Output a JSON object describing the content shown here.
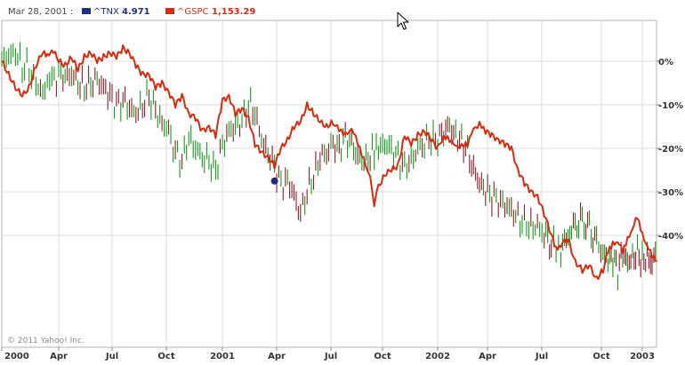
{
  "legend": {
    "date": "Mar 28, 2001 :",
    "items": [
      {
        "symbol": "^TNX",
        "value": "4.971",
        "color": "#1f2e80"
      },
      {
        "symbol": "^GSPC",
        "value": "1,153.29",
        "color": "#d62b0e"
      }
    ]
  },
  "copyright": "© 2011 Yahoo! Inc.",
  "colors": {
    "up": "#169a1b",
    "down": "#8a1f2b",
    "line": "#d62b0e",
    "grid": "#dcdcdc",
    "frame": "#b4b4b4",
    "marker": "#1f2e80"
  },
  "icons": {
    "cursor": "mouse-pointer-icon"
  },
  "chart_data": {
    "type": "line",
    "title": "",
    "x_tick_labels": [
      "2000",
      "Apr",
      "Jul",
      "Oct",
      "2001",
      "Apr",
      "Jul",
      "Oct",
      "2002",
      "Apr",
      "Jul",
      "Oct",
      "2003"
    ],
    "y_tick_labels": [
      "0%",
      "-10%",
      "-20%",
      "-30%",
      "-40%"
    ],
    "y_ticks": [
      0,
      -10,
      -20,
      -30,
      -40
    ],
    "ylim": [
      12,
      -53
    ],
    "xlim": [
      2000.0,
      2003.1
    ],
    "grid": true,
    "marker": {
      "series": "^TNX",
      "date": "Mar 28, 2001",
      "x": 2001.24,
      "y": -27.5
    },
    "series": [
      {
        "name": "^GSPC",
        "style": "line",
        "x": [
          2000.0,
          2000.03,
          2000.06,
          2000.09,
          2000.12,
          2000.15,
          2000.18,
          2000.2,
          2000.22,
          2000.25,
          2000.28,
          2000.31,
          2000.34,
          2000.37,
          2000.4,
          2000.43,
          2000.46,
          2000.49,
          2000.52,
          2000.55,
          2000.58,
          2000.61,
          2000.64,
          2000.67,
          2000.7,
          2000.73,
          2000.76,
          2000.79,
          2000.82,
          2000.85,
          2000.88,
          2000.91,
          2000.94,
          2000.97,
          2001.0,
          2001.03,
          2001.06,
          2001.09,
          2001.12,
          2001.15,
          2001.18,
          2001.21,
          2001.24,
          2001.27,
          2001.3,
          2001.33,
          2001.36,
          2001.39,
          2001.42,
          2001.45,
          2001.48,
          2001.51,
          2001.54,
          2001.57,
          2001.6,
          2001.63,
          2001.66,
          2001.69,
          2001.71,
          2001.73,
          2001.76,
          2001.79,
          2001.82,
          2001.85,
          2001.88,
          2001.91,
          2001.94,
          2001.97,
          2002.0,
          2002.03,
          2002.06,
          2002.09,
          2002.12,
          2002.15,
          2002.18,
          2002.21,
          2002.24,
          2002.27,
          2002.3,
          2002.33,
          2002.36,
          2002.39,
          2002.42,
          2002.45,
          2002.48,
          2002.51,
          2002.54,
          2002.56,
          2002.58,
          2002.61,
          2002.64,
          2002.67,
          2002.7,
          2002.73,
          2002.76,
          2002.79,
          2002.82,
          2002.85,
          2002.88,
          2002.91,
          2002.94,
          2002.97,
          2003.0,
          2003.03,
          2003.06,
          2003.09
        ],
        "y": [
          0,
          -3,
          -6,
          -8,
          -6,
          -1,
          2,
          1,
          3,
          0,
          -1,
          1,
          -2,
          1,
          2,
          0,
          1,
          2,
          1,
          3,
          2,
          -1,
          -3,
          -3,
          -6,
          -5,
          -7,
          -10,
          -8,
          -12,
          -13,
          -16,
          -15,
          -17,
          -9,
          -8,
          -12,
          -11,
          -13,
          -19,
          -21,
          -22,
          -24,
          -20,
          -18,
          -15,
          -14,
          -10,
          -12,
          -14,
          -15,
          -14,
          -16,
          -17,
          -15,
          -19,
          -23,
          -26,
          -33,
          -29,
          -26,
          -25,
          -24,
          -17,
          -19,
          -17,
          -16,
          -18,
          -20,
          -17,
          -18,
          -20,
          -19,
          -19,
          -16,
          -14,
          -16,
          -17,
          -18,
          -19,
          -20,
          -25,
          -28,
          -30,
          -31,
          -35,
          -40,
          -43,
          -42,
          -41,
          -46,
          -48,
          -47,
          -50,
          -48,
          -44,
          -42,
          -41,
          -44,
          -41,
          -38,
          -36,
          -40,
          -42,
          -45,
          -46
        ],
        "color": "#d62b0e"
      },
      {
        "name": "^TNX",
        "style": "hloc",
        "x": [
          2000.0,
          2000.03,
          2000.06,
          2000.09,
          2000.12,
          2000.15,
          2000.18,
          2000.2,
          2000.22,
          2000.25,
          2000.28,
          2000.31,
          2000.34,
          2000.37,
          2000.4,
          2000.43,
          2000.46,
          2000.49,
          2000.52,
          2000.55,
          2000.58,
          2000.61,
          2000.64,
          2000.67,
          2000.7,
          2000.73,
          2000.76,
          2000.79,
          2000.82,
          2000.85,
          2000.88,
          2000.91,
          2000.94,
          2000.97,
          2001.0,
          2001.03,
          2001.06,
          2001.09,
          2001.12,
          2001.15,
          2001.18,
          2001.21,
          2001.24,
          2001.27,
          2001.3,
          2001.33,
          2001.36,
          2001.39,
          2001.42,
          2001.45,
          2001.48,
          2001.51,
          2001.54,
          2001.57,
          2001.6,
          2001.63,
          2001.66,
          2001.69,
          2001.71,
          2001.73,
          2001.76,
          2001.79,
          2001.82,
          2001.85,
          2001.88,
          2001.91,
          2001.94,
          2001.97,
          2002.0,
          2002.03,
          2002.06,
          2002.09,
          2002.12,
          2002.15,
          2002.18,
          2002.21,
          2002.24,
          2002.27,
          2002.3,
          2002.33,
          2002.36,
          2002.39,
          2002.42,
          2002.45,
          2002.48,
          2002.51,
          2002.54,
          2002.56,
          2002.58,
          2002.61,
          2002.64,
          2002.67,
          2002.7,
          2002.73,
          2002.76,
          2002.79,
          2002.82,
          2002.85,
          2002.88,
          2002.91,
          2002.94,
          2002.97,
          2003.0,
          2003.03,
          2003.06,
          2003.09
        ],
        "y": [
          0,
          1,
          2,
          -1,
          -2,
          -5,
          -7,
          -6,
          -5,
          -3,
          -4,
          -3,
          -5,
          -6,
          -5,
          -4,
          -6,
          -8,
          -10,
          -9,
          -11,
          -12,
          -10,
          -8,
          -11,
          -14,
          -16,
          -21,
          -23,
          -18,
          -20,
          -22,
          -23,
          -25,
          -19,
          -16,
          -15,
          -14,
          -10,
          -12,
          -18,
          -21,
          -24,
          -28,
          -27,
          -31,
          -35,
          -30,
          -27,
          -22,
          -21,
          -19,
          -20,
          -17,
          -19,
          -22,
          -23,
          -22,
          -21,
          -20,
          -19,
          -20,
          -22,
          -24,
          -23,
          -20,
          -19,
          -18,
          -18,
          -16,
          -15,
          -17,
          -18,
          -21,
          -25,
          -28,
          -30,
          -31,
          -32,
          -33,
          -34,
          -36,
          -37,
          -38,
          -38,
          -40,
          -41,
          -42,
          -43,
          -40,
          -38,
          -37,
          -39,
          -42,
          -44,
          -46,
          -45,
          -48,
          -44,
          -46,
          -45,
          -44,
          -46,
          -45,
          -47,
          -43
        ],
        "colors": {
          "up": "#169a1b",
          "down": "#8a1f2b"
        }
      }
    ]
  }
}
